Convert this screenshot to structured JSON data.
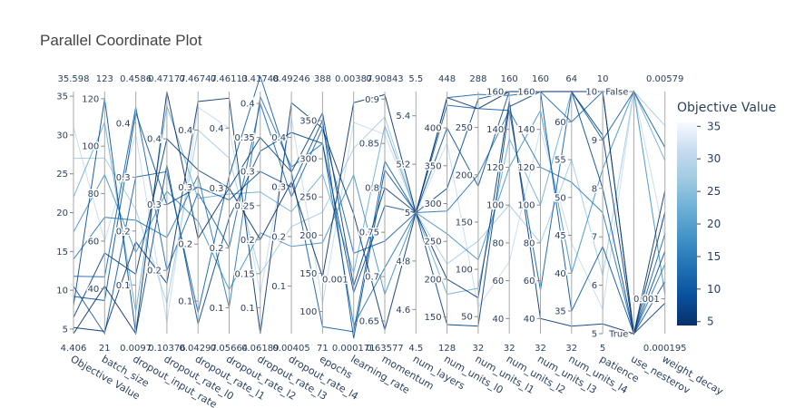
{
  "chart_data": {
    "type": "parallel_coordinates",
    "title": "Parallel Coordinate Plot",
    "colorbar": {
      "title": "Objective Value",
      "range": [
        4.406,
        35.598
      ],
      "ticks": [
        5,
        10,
        15,
        20,
        25,
        30,
        35
      ],
      "colorscale": [
        "#08306b",
        "#08519c",
        "#2171b5",
        "#4292c6",
        "#6baed6",
        "#9ecae1",
        "#c6dbef",
        "#f7fbff"
      ]
    },
    "axes": [
      {
        "label": "Objective Value",
        "min": 4.406,
        "max": 35.598,
        "min_label": "4.406",
        "max_label": "35.598",
        "ticks": [
          {
            "v": 5,
            "t": "5"
          },
          {
            "v": 10,
            "t": "10"
          },
          {
            "v": 15,
            "t": "15"
          },
          {
            "v": 20,
            "t": "20"
          },
          {
            "v": 25,
            "t": "25"
          },
          {
            "v": 30,
            "t": "30"
          },
          {
            "v": 35,
            "t": "35"
          }
        ]
      },
      {
        "label": "batch_size",
        "min": 21,
        "max": 123,
        "min_label": "21",
        "max_label": "123",
        "ticks": [
          {
            "v": 40,
            "t": "40"
          },
          {
            "v": 60,
            "t": "60"
          },
          {
            "v": 80,
            "t": "80"
          },
          {
            "v": 100,
            "t": "100"
          },
          {
            "v": 120,
            "t": "120"
          }
        ]
      },
      {
        "label": "dropout_input_rate",
        "min": 0.0097,
        "max": 0.4586,
        "min_label": "0.0097",
        "max_label": "0.4586",
        "ticks": [
          {
            "v": 0.1,
            "t": "0.1"
          },
          {
            "v": 0.2,
            "t": "0.2"
          },
          {
            "v": 0.3,
            "t": "0.3"
          },
          {
            "v": 0.4,
            "t": "0.4"
          }
        ]
      },
      {
        "label": "dropout_rate_l0",
        "min": 0.10376,
        "max": 0.47177,
        "min_label": "0.10376",
        "max_label": "0.47177",
        "ticks": [
          {
            "v": 0.2,
            "t": "0.2"
          },
          {
            "v": 0.3,
            "t": "0.3"
          },
          {
            "v": 0.4,
            "t": "0.4"
          }
        ]
      },
      {
        "label": "dropout_rate_l1",
        "min": 0.04297,
        "max": 0.46747,
        "min_label": "0.04297",
        "max_label": "0.46747",
        "ticks": [
          {
            "v": 0.1,
            "t": "0.1"
          },
          {
            "v": 0.2,
            "t": "0.2"
          },
          {
            "v": 0.3,
            "t": "0.3"
          },
          {
            "v": 0.4,
            "t": "0.4"
          }
        ]
      },
      {
        "label": "dropout_rate_l2",
        "min": 0.05664,
        "max": 0.46113,
        "min_label": "0.05664",
        "max_label": "0.46113",
        "ticks": [
          {
            "v": 0.1,
            "t": "0.1"
          },
          {
            "v": 0.2,
            "t": "0.2"
          },
          {
            "v": 0.3,
            "t": "0.3"
          },
          {
            "v": 0.4,
            "t": "0.4"
          }
        ]
      },
      {
        "label": "dropout_rate_l3",
        "min": 0.06189,
        "max": 0.41748,
        "min_label": "0.06189",
        "max_label": "0.41748",
        "ticks": [
          {
            "v": 0.1,
            "t": "0.1"
          },
          {
            "v": 0.15,
            "t": "0.15"
          },
          {
            "v": 0.2,
            "t": "0.2"
          },
          {
            "v": 0.25,
            "t": "0.25"
          },
          {
            "v": 0.3,
            "t": "0.3"
          },
          {
            "v": 0.35,
            "t": "0.35"
          },
          {
            "v": 0.4,
            "t": "0.4"
          }
        ]
      },
      {
        "label": "dropout_rate_l4",
        "min": 0.00405,
        "max": 0.49246,
        "min_label": "0.00405",
        "max_label": "0.49246",
        "ticks": [
          {
            "v": 0.1,
            "t": "0.1"
          },
          {
            "v": 0.2,
            "t": "0.2"
          },
          {
            "v": 0.3,
            "t": "0.3"
          },
          {
            "v": 0.4,
            "t": "0.4"
          }
        ]
      },
      {
        "label": "epochs",
        "min": 71,
        "max": 388,
        "min_label": "71",
        "max_label": "388",
        "ticks": [
          {
            "v": 100,
            "t": "100"
          },
          {
            "v": 150,
            "t": "150"
          },
          {
            "v": 200,
            "t": "200"
          },
          {
            "v": 250,
            "t": "250"
          },
          {
            "v": 300,
            "t": "300"
          },
          {
            "v": 350,
            "t": "350"
          }
        ]
      },
      {
        "label": "learning_rate",
        "min": 0.000171,
        "max": 0.00387,
        "min_label": "0.000171",
        "max_label": "0.00387",
        "ticks": [
          {
            "v": 0.001,
            "t": "0.001"
          }
        ]
      },
      {
        "label": "momentum",
        "min": 0.63577,
        "max": 0.90843,
        "min_label": "0.63577",
        "max_label": "0.90843",
        "ticks": [
          {
            "v": 0.65,
            "t": "0.65"
          },
          {
            "v": 0.7,
            "t": "0.7"
          },
          {
            "v": 0.75,
            "t": "0.75"
          },
          {
            "v": 0.8,
            "t": "0.8"
          },
          {
            "v": 0.85,
            "t": "0.85"
          },
          {
            "v": 0.9,
            "t": "0.9"
          }
        ]
      },
      {
        "label": "num_layers",
        "min": 4.5,
        "max": 5.5,
        "min_label": "4.5",
        "max_label": "5.5",
        "ticks": [
          {
            "v": 4.6,
            "t": "4.6"
          },
          {
            "v": 4.8,
            "t": "4.8"
          },
          {
            "v": 5,
            "t": "5"
          },
          {
            "v": 5.2,
            "t": "5.2"
          },
          {
            "v": 5.4,
            "t": "5.4"
          }
        ]
      },
      {
        "label": "num_units_l0",
        "min": 128,
        "max": 448,
        "min_label": "128",
        "max_label": "448",
        "ticks": [
          {
            "v": 150,
            "t": "150"
          },
          {
            "v": 200,
            "t": "200"
          },
          {
            "v": 250,
            "t": "250"
          },
          {
            "v": 300,
            "t": "300"
          },
          {
            "v": 350,
            "t": "350"
          },
          {
            "v": 400,
            "t": "400"
          }
        ]
      },
      {
        "label": "num_units_l1",
        "min": 32,
        "max": 288,
        "min_label": "32",
        "max_label": "288",
        "ticks": [
          {
            "v": 50,
            "t": "50"
          },
          {
            "v": 100,
            "t": "100"
          },
          {
            "v": 150,
            "t": "150"
          },
          {
            "v": 200,
            "t": "200"
          },
          {
            "v": 250,
            "t": "250"
          }
        ]
      },
      {
        "label": "num_units_l2",
        "min": 32,
        "max": 160,
        "min_label": "32",
        "max_label": "160",
        "ticks": [
          {
            "v": 40,
            "t": "40"
          },
          {
            "v": 60,
            "t": "60"
          },
          {
            "v": 80,
            "t": "80"
          },
          {
            "v": 100,
            "t": "100"
          },
          {
            "v": 120,
            "t": "120"
          },
          {
            "v": 140,
            "t": "140"
          },
          {
            "v": 160,
            "t": "160"
          }
        ]
      },
      {
        "label": "num_units_l3",
        "min": 32,
        "max": 160,
        "min_label": "32",
        "max_label": "160",
        "ticks": [
          {
            "v": 40,
            "t": "40"
          },
          {
            "v": 60,
            "t": "60"
          },
          {
            "v": 80,
            "t": "80"
          },
          {
            "v": 100,
            "t": "100"
          },
          {
            "v": 120,
            "t": "120"
          },
          {
            "v": 140,
            "t": "140"
          },
          {
            "v": 160,
            "t": "160"
          }
        ]
      },
      {
        "label": "num_units_l4",
        "min": 32,
        "max": 64,
        "min_label": "32",
        "max_label": "64",
        "ticks": [
          {
            "v": 35,
            "t": "35"
          },
          {
            "v": 40,
            "t": "40"
          },
          {
            "v": 45,
            "t": "45"
          },
          {
            "v": 50,
            "t": "50"
          },
          {
            "v": 55,
            "t": "55"
          },
          {
            "v": 60,
            "t": "60"
          }
        ]
      },
      {
        "label": "patience",
        "min": 5,
        "max": 10,
        "min_label": "5",
        "max_label": "10",
        "ticks": [
          {
            "v": 5,
            "t": "5"
          },
          {
            "v": 6,
            "t": "6"
          },
          {
            "v": 7,
            "t": "7"
          },
          {
            "v": 8,
            "t": "8"
          },
          {
            "v": 9,
            "t": "9"
          },
          {
            "v": 10,
            "t": "10"
          }
        ]
      },
      {
        "label": "use_nesterov",
        "min": 0,
        "max": 1,
        "min_label": "",
        "max_label": "",
        "ticks": [
          {
            "v": 0,
            "t": "True"
          },
          {
            "v": 1,
            "t": "False"
          }
        ]
      },
      {
        "label": "weight_decay",
        "min": 0.000195,
        "max": 0.00579,
        "min_label": "0.000195",
        "max_label": "0.00579",
        "ticks": [
          {
            "v": 0.001,
            "t": "0.001"
          }
        ]
      }
    ],
    "trials": [
      {
        "values": [
          4.406,
          41,
          0.0097,
          0.47177,
          0.21,
          0.3,
          0.2,
          0.31,
          145,
          0.0037,
          0.905,
          5,
          440,
          270,
          160,
          160,
          64,
          10,
          0,
          0.003
        ]
      },
      {
        "values": [
          5.2,
          22,
          0.18,
          0.18,
          0.45,
          0.45,
          0.06189,
          0.47,
          340,
          0.002,
          0.64,
          5,
          200,
          70,
          155,
          40,
          33,
          5.2,
          0,
          0.0035
        ]
      },
      {
        "values": [
          6.5,
          55,
          0.12,
          0.4,
          0.33,
          0.3,
          0.35,
          0.33,
          360,
          0.0009,
          0.8,
          5,
          140,
          40,
          152,
          160,
          64,
          9.1,
          0,
          0.0009
        ]
      },
      {
        "values": [
          8.0,
          120,
          0.0097,
          0.36,
          0.06,
          0.25,
          0.33,
          0.41,
          320,
          0.0008,
          0.78,
          5,
          320,
          280,
          160,
          160,
          64,
          8.0,
          0,
          0.0021
        ]
      },
      {
        "values": [
          9.2,
          35,
          0.42,
          0.3,
          0.3,
          0.28,
          0.3,
          0.3,
          350,
          0.0001,
          0.82,
          5,
          400,
          188,
          160,
          160,
          35,
          6.8,
          0,
          0.0014
        ]
      },
      {
        "values": [
          10.5,
          21,
          0.3,
          0.35,
          0.08,
          0.32,
          0.44,
          0.33,
          80,
          0.0002,
          0.83,
          5,
          430,
          270,
          150,
          55,
          64,
          9.0,
          1,
          0.0045
        ]
      },
      {
        "values": [
          11.8,
          45,
          0.43,
          0.2,
          0.29,
          0.2,
          0.4,
          0.28,
          340,
          0.0014,
          0.74,
          5,
          440,
          285,
          158,
          160,
          60,
          10,
          0,
          0.0025
        ]
      },
      {
        "values": [
          14.0,
          70,
          0.22,
          0.25,
          0.32,
          0.1,
          0.41,
          0.34,
          320,
          0.0003,
          0.71,
          5,
          290,
          200,
          150,
          120,
          52,
          7.5,
          0,
          0.0018
        ]
      },
      {
        "values": [
          17.5,
          88,
          0.16,
          0.32,
          0.24,
          0.13,
          0.21,
          0.18,
          190,
          0.0026,
          0.68,
          5,
          260,
          110,
          120,
          150,
          40,
          8.4,
          1,
          0.0011
        ]
      },
      {
        "values": [
          22.0,
          110,
          0.05,
          0.45,
          0.28,
          0.29,
          0.27,
          0.25,
          280,
          0.0011,
          0.87,
          5,
          180,
          80,
          135,
          100,
          64,
          10,
          1,
          0.0042
        ]
      },
      {
        "values": [
          27.0,
          95,
          0.24,
          0.15,
          0.4,
          0.35,
          0.15,
          0.22,
          230,
          0.003,
          0.88,
          5,
          220,
          130,
          100,
          80,
          55,
          6.2,
          1,
          0.005
        ]
      },
      {
        "values": [
          31.0,
          60,
          0.38,
          0.12,
          0.44,
          0.4,
          0.12,
          0.44,
          110,
          0.0034,
          0.86,
          5,
          380,
          60,
          70,
          140,
          44,
          5.5,
          1,
          0.0024
        ]
      },
      {
        "values": [
          35.598,
          123,
          0.12,
          0.22,
          0.4,
          0.45,
          0.25,
          0.4,
          300,
          0.0016,
          0.76,
          5,
          150,
          240,
          90,
          60,
          38,
          9.5,
          1,
          0.0057
        ]
      }
    ]
  }
}
